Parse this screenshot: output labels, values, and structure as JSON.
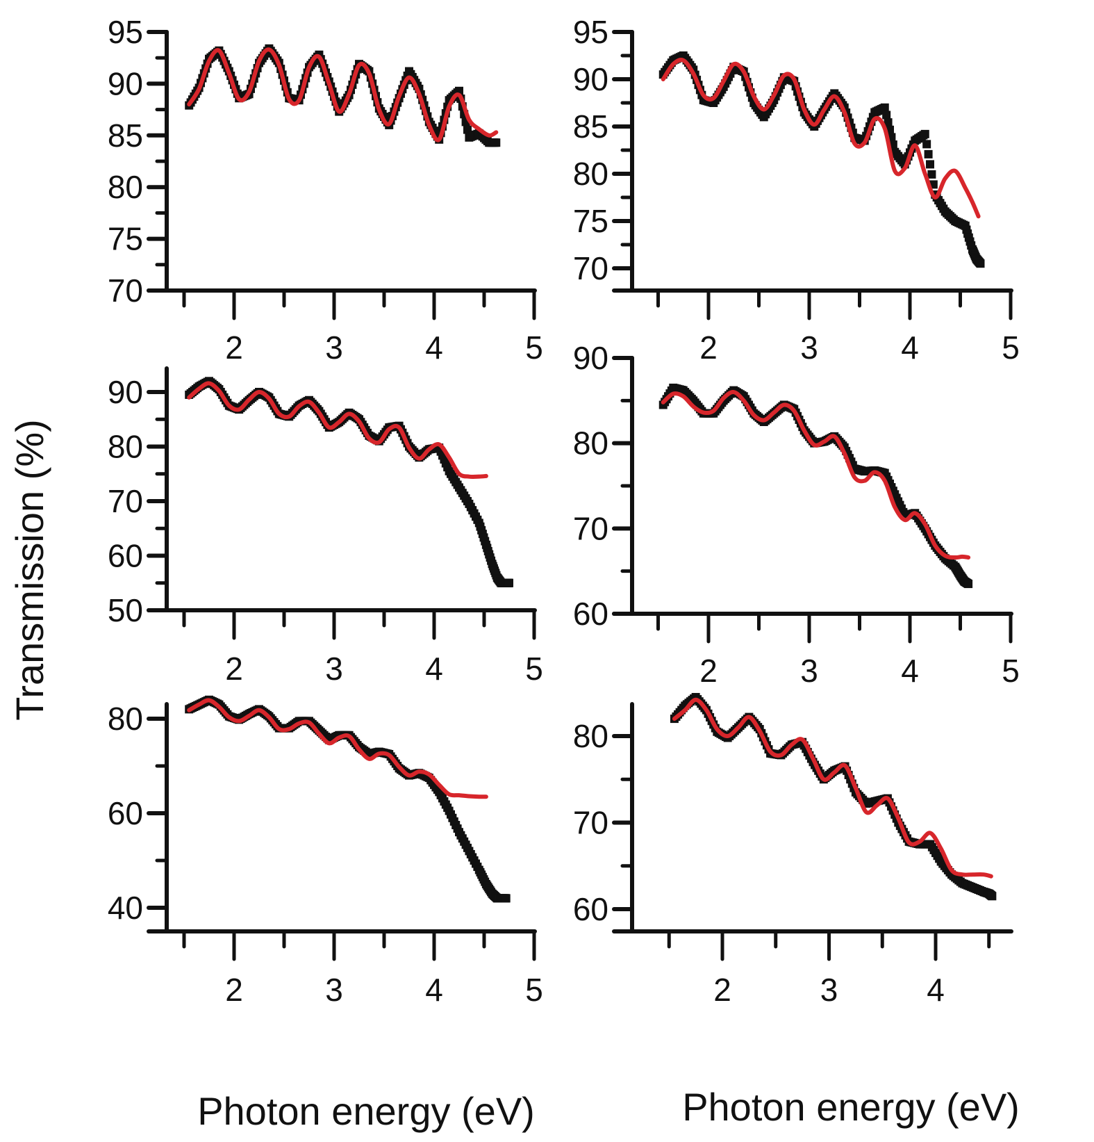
{
  "figure": {
    "ylabel": "Transmission (%)",
    "xlabel_left": "Photon energy (eV)",
    "xlabel_right": "Photon energy (eV)"
  },
  "colors": {
    "measured": "#111111",
    "fit": "#d7262b",
    "axis": "#111111"
  },
  "chart_data": [
    {
      "type": "line",
      "panel": "top-left",
      "xlabel": "Photon energy (eV)",
      "ylabel": "Transmission (%)",
      "xlim": [
        1.3,
        5.0
      ],
      "ylim": [
        70,
        95
      ],
      "xticks": [
        2,
        3,
        4,
        5
      ],
      "yticks": [
        70,
        75,
        80,
        85,
        90,
        95
      ],
      "grid": false,
      "series": [
        {
          "name": "measured",
          "style": "dotted-squares",
          "x": [
            1.55,
            1.65,
            1.75,
            1.85,
            1.95,
            2.05,
            2.15,
            2.25,
            2.35,
            2.45,
            2.55,
            2.65,
            2.75,
            2.85,
            2.95,
            3.05,
            3.15,
            3.25,
            3.35,
            3.45,
            3.55,
            3.65,
            3.75,
            3.85,
            3.95,
            4.05,
            4.15,
            4.25,
            4.35,
            4.45,
            4.55,
            4.62
          ],
          "y": [
            87.9,
            89.6,
            92.4,
            93.2,
            91.2,
            88.6,
            89.0,
            92.0,
            93.4,
            92.0,
            88.6,
            88.4,
            91.6,
            92.8,
            90.2,
            87.3,
            88.9,
            91.9,
            91.2,
            87.6,
            86.0,
            88.6,
            91.2,
            89.5,
            86.3,
            84.6,
            88.4,
            89.3,
            84.8,
            85.2,
            84.3,
            84.3
          ]
        },
        {
          "name": "fit",
          "style": "line",
          "x": [
            1.55,
            1.65,
            1.75,
            1.85,
            1.95,
            2.05,
            2.15,
            2.25,
            2.35,
            2.45,
            2.55,
            2.65,
            2.75,
            2.85,
            2.95,
            3.05,
            3.15,
            3.25,
            3.35,
            3.45,
            3.55,
            3.65,
            3.75,
            3.85,
            3.95,
            4.05,
            4.15,
            4.25,
            4.35,
            4.45,
            4.55,
            4.62
          ],
          "y": [
            88.0,
            89.5,
            92.2,
            93.2,
            91.0,
            88.5,
            89.2,
            92.2,
            93.3,
            91.8,
            88.5,
            88.4,
            91.6,
            92.6,
            90.0,
            87.3,
            89.0,
            91.8,
            91.0,
            87.5,
            86.1,
            88.8,
            90.6,
            89.0,
            86.0,
            84.6,
            87.8,
            88.9,
            86.5,
            85.6,
            85.0,
            85.3
          ]
        }
      ]
    },
    {
      "type": "line",
      "panel": "top-right",
      "xlabel": "Photon energy (eV)",
      "ylabel": "Transmission (%)",
      "xlim": [
        1.3,
        5.0
      ],
      "ylim": [
        66.5,
        95
      ],
      "xticks": [
        2,
        3,
        4,
        5
      ],
      "yticks": [
        70,
        75,
        80,
        85,
        90,
        95
      ],
      "grid": false,
      "series": [
        {
          "name": "measured",
          "style": "dotted-squares",
          "x": [
            1.55,
            1.65,
            1.75,
            1.85,
            1.95,
            2.05,
            2.15,
            2.25,
            2.35,
            2.45,
            2.55,
            2.65,
            2.75,
            2.85,
            2.95,
            3.05,
            3.15,
            3.25,
            3.35,
            3.45,
            3.55,
            3.65,
            3.75,
            3.85,
            3.95,
            4.05,
            4.15,
            4.25,
            4.35,
            4.45,
            4.55,
            4.62,
            4.66,
            4.7
          ],
          "y": [
            90.5,
            92.0,
            92.5,
            91.0,
            87.8,
            87.5,
            89.2,
            91.3,
            90.8,
            87.5,
            86.0,
            87.8,
            90.2,
            89.8,
            86.5,
            85.0,
            86.8,
            88.5,
            87.0,
            83.8,
            83.5,
            86.5,
            87.0,
            82.3,
            81.0,
            83.5,
            84.2,
            77.8,
            76.0,
            75.0,
            74.5,
            72.0,
            71.0,
            70.5
          ]
        },
        {
          "name": "fit",
          "style": "line",
          "x": [
            1.55,
            1.65,
            1.75,
            1.85,
            1.95,
            2.05,
            2.15,
            2.25,
            2.35,
            2.45,
            2.55,
            2.65,
            2.75,
            2.85,
            2.95,
            3.05,
            3.15,
            3.25,
            3.35,
            3.45,
            3.55,
            3.65,
            3.75,
            3.85,
            3.95,
            4.05,
            4.15,
            4.25,
            4.35,
            4.45,
            4.55,
            4.62,
            4.68
          ],
          "y": [
            90.0,
            91.6,
            92.0,
            90.6,
            88.3,
            88.0,
            89.8,
            91.6,
            90.8,
            88.2,
            86.8,
            88.3,
            90.4,
            90.0,
            86.8,
            85.2,
            86.8,
            88.2,
            86.5,
            83.2,
            83.3,
            85.8,
            84.8,
            80.3,
            80.6,
            83.0,
            80.0,
            77.5,
            79.5,
            80.3,
            78.5,
            77.0,
            75.5
          ]
        }
      ]
    },
    {
      "type": "line",
      "panel": "middle-left",
      "xlabel": "Photon energy (eV)",
      "ylabel": "Transmission (%)",
      "xlim": [
        1.3,
        5.0
      ],
      "ylim": [
        50,
        94
      ],
      "xticks": [
        2,
        3,
        4,
        5
      ],
      "yticks": [
        50,
        60,
        70,
        80,
        90
      ],
      "grid": false,
      "series": [
        {
          "name": "measured",
          "style": "dotted-squares",
          "x": [
            1.55,
            1.65,
            1.75,
            1.85,
            1.95,
            2.05,
            2.15,
            2.25,
            2.35,
            2.45,
            2.55,
            2.65,
            2.75,
            2.85,
            2.95,
            3.05,
            3.15,
            3.25,
            3.35,
            3.45,
            3.55,
            3.65,
            3.75,
            3.85,
            3.95,
            4.05,
            4.15,
            4.25,
            4.35,
            4.45,
            4.52,
            4.58,
            4.63,
            4.67,
            4.7,
            4.73,
            4.75
          ],
          "y": [
            89.5,
            91.0,
            92.0,
            90.5,
            87.5,
            86.8,
            88.5,
            90.0,
            89.0,
            86.0,
            85.5,
            87.5,
            88.5,
            86.5,
            83.5,
            84.5,
            86.2,
            85.0,
            82.0,
            81.0,
            83.5,
            83.8,
            80.0,
            78.0,
            79.5,
            79.8,
            75.5,
            72.5,
            69.5,
            66.0,
            62.0,
            58.5,
            56.0,
            55.0,
            55.0,
            55.0,
            55.0
          ]
        },
        {
          "name": "fit",
          "style": "line",
          "x": [
            1.55,
            1.65,
            1.75,
            1.85,
            1.95,
            2.05,
            2.15,
            2.25,
            2.35,
            2.45,
            2.55,
            2.65,
            2.75,
            2.85,
            2.95,
            3.05,
            3.15,
            3.25,
            3.35,
            3.45,
            3.55,
            3.65,
            3.75,
            3.85,
            3.95,
            4.05,
            4.15,
            4.25,
            4.35,
            4.45,
            4.52
          ],
          "y": [
            89.0,
            90.6,
            91.6,
            90.2,
            87.5,
            86.8,
            88.6,
            90.0,
            88.8,
            86.0,
            85.5,
            87.4,
            88.2,
            86.2,
            83.5,
            84.5,
            86.0,
            84.6,
            81.5,
            80.8,
            83.2,
            83.5,
            79.8,
            77.8,
            79.5,
            80.4,
            78.0,
            75.0,
            74.5,
            74.5,
            74.6
          ]
        }
      ]
    },
    {
      "type": "line",
      "panel": "middle-right",
      "xlabel": "Photon energy (eV)",
      "ylabel": "Transmission (%)",
      "xlim": [
        1.3,
        5.0
      ],
      "ylim": [
        60,
        90
      ],
      "xticks": [
        2,
        3,
        4,
        5
      ],
      "yticks": [
        60,
        70,
        80,
        90
      ],
      "grid": false,
      "series": [
        {
          "name": "measured",
          "style": "dotted-squares",
          "x": [
            1.55,
            1.65,
            1.75,
            1.85,
            1.95,
            2.05,
            2.15,
            2.25,
            2.35,
            2.45,
            2.55,
            2.65,
            2.75,
            2.85,
            2.95,
            3.05,
            3.15,
            3.25,
            3.35,
            3.45,
            3.55,
            3.65,
            3.75,
            3.85,
            3.95,
            4.05,
            4.15,
            4.25,
            4.35,
            4.45,
            4.5,
            4.54,
            4.58
          ],
          "y": [
            84.5,
            86.5,
            86.2,
            85.0,
            83.5,
            83.5,
            85.0,
            86.2,
            85.5,
            83.5,
            82.5,
            83.5,
            84.5,
            84.0,
            81.5,
            80.0,
            80.2,
            80.8,
            79.5,
            77.0,
            76.7,
            76.8,
            76.5,
            74.0,
            71.5,
            71.8,
            70.0,
            68.0,
            66.5,
            65.5,
            64.5,
            63.8,
            63.5
          ]
        },
        {
          "name": "fit",
          "style": "line",
          "x": [
            1.55,
            1.65,
            1.75,
            1.85,
            1.95,
            2.05,
            2.15,
            2.25,
            2.35,
            2.45,
            2.55,
            2.65,
            2.75,
            2.85,
            2.95,
            3.05,
            3.15,
            3.25,
            3.35,
            3.45,
            3.55,
            3.65,
            3.75,
            3.85,
            3.95,
            4.05,
            4.15,
            4.25,
            4.35,
            4.45,
            4.52,
            4.58
          ],
          "y": [
            84.8,
            85.8,
            85.5,
            84.3,
            83.6,
            83.8,
            85.3,
            86.0,
            85.0,
            83.3,
            82.7,
            83.6,
            84.5,
            83.8,
            81.5,
            79.8,
            80.2,
            80.8,
            78.8,
            76.0,
            75.6,
            76.6,
            75.6,
            72.5,
            71.0,
            71.8,
            70.5,
            68.0,
            66.8,
            66.6,
            66.7,
            66.6
          ]
        }
      ]
    },
    {
      "type": "line",
      "panel": "bottom-left",
      "xlabel": "Photon energy (eV)",
      "ylabel": "Transmission (%)",
      "xlim": [
        1.3,
        5.0
      ],
      "ylim": [
        35,
        90
      ],
      "xticks": [
        2,
        3,
        4,
        5
      ],
      "yticks": [
        40,
        60,
        80
      ],
      "grid": false,
      "series": [
        {
          "name": "measured",
          "style": "dotted-squares",
          "x": [
            1.55,
            1.65,
            1.75,
            1.85,
            1.95,
            2.05,
            2.15,
            2.25,
            2.35,
            2.45,
            2.55,
            2.65,
            2.75,
            2.85,
            2.95,
            3.05,
            3.15,
            3.25,
            3.35,
            3.45,
            3.55,
            3.65,
            3.75,
            3.85,
            3.95,
            4.05,
            4.15,
            4.25,
            4.35,
            4.45,
            4.52,
            4.58,
            4.63,
            4.67,
            4.7,
            4.72
          ],
          "y": [
            82.0,
            83.0,
            84.0,
            83.0,
            80.5,
            79.8,
            81.0,
            82.0,
            80.5,
            78.0,
            78.0,
            79.5,
            79.5,
            77.5,
            75.5,
            76.5,
            76.5,
            74.0,
            72.5,
            73.0,
            72.5,
            69.5,
            68.0,
            68.5,
            67.5,
            64.5,
            60.5,
            56.0,
            52.0,
            48.0,
            45.0,
            43.0,
            42.0,
            42.0,
            42.0,
            42.0
          ]
        },
        {
          "name": "fit",
          "style": "line",
          "x": [
            1.55,
            1.65,
            1.75,
            1.85,
            1.95,
            2.05,
            2.15,
            2.25,
            2.35,
            2.45,
            2.55,
            2.65,
            2.75,
            2.85,
            2.95,
            3.05,
            3.15,
            3.25,
            3.35,
            3.45,
            3.55,
            3.65,
            3.75,
            3.85,
            3.95,
            4.05,
            4.15,
            4.25,
            4.35,
            4.45,
            4.52
          ],
          "y": [
            81.8,
            83.0,
            83.9,
            82.5,
            80.3,
            79.5,
            80.6,
            81.8,
            80.3,
            77.8,
            77.8,
            79.0,
            79.2,
            76.8,
            74.8,
            76.0,
            76.3,
            73.5,
            71.5,
            72.6,
            72.3,
            69.8,
            68.0,
            68.8,
            68.2,
            66.0,
            64.0,
            63.8,
            63.6,
            63.5,
            63.5
          ]
        }
      ]
    },
    {
      "type": "line",
      "panel": "bottom-right",
      "xlabel": "Photon energy (eV)",
      "ylabel": "Transmission (%)",
      "xlim": [
        1.3,
        4.8
      ],
      "ylim": [
        58,
        85
      ],
      "xticks": [
        2,
        3,
        4
      ],
      "yticks": [
        60,
        70,
        80
      ],
      "grid": false,
      "series": [
        {
          "name": "measured",
          "style": "dotted-squares",
          "x": [
            1.55,
            1.65,
            1.75,
            1.85,
            1.95,
            2.05,
            2.15,
            2.25,
            2.35,
            2.45,
            2.55,
            2.65,
            2.75,
            2.85,
            2.95,
            3.05,
            3.15,
            3.25,
            3.35,
            3.45,
            3.55,
            3.65,
            3.75,
            3.85,
            3.95,
            4.05,
            4.15,
            4.25,
            4.35,
            4.45,
            4.5,
            4.53
          ],
          "y": [
            82.0,
            83.5,
            84.5,
            83.0,
            80.5,
            79.8,
            81.0,
            82.2,
            80.8,
            78.0,
            77.8,
            79.0,
            79.3,
            77.0,
            75.0,
            76.0,
            76.5,
            73.5,
            72.2,
            72.5,
            72.8,
            70.0,
            67.8,
            67.5,
            67.5,
            65.5,
            64.0,
            63.0,
            62.5,
            62.0,
            61.8,
            61.5
          ]
        },
        {
          "name": "fit",
          "style": "line",
          "x": [
            1.55,
            1.65,
            1.75,
            1.85,
            1.95,
            2.05,
            2.15,
            2.25,
            2.35,
            2.45,
            2.55,
            2.65,
            2.75,
            2.85,
            2.95,
            3.05,
            3.15,
            3.25,
            3.35,
            3.45,
            3.55,
            3.65,
            3.75,
            3.85,
            3.95,
            4.05,
            4.15,
            4.25,
            4.35,
            4.45,
            4.52
          ],
          "y": [
            82.0,
            83.0,
            84.2,
            83.0,
            80.8,
            80.0,
            81.0,
            82.2,
            80.6,
            78.2,
            77.8,
            79.0,
            79.6,
            77.4,
            75.0,
            75.8,
            76.6,
            74.0,
            71.2,
            72.0,
            72.8,
            70.5,
            67.7,
            67.8,
            68.8,
            67.0,
            64.5,
            64.0,
            64.0,
            64.0,
            63.8
          ]
        }
      ]
    }
  ]
}
